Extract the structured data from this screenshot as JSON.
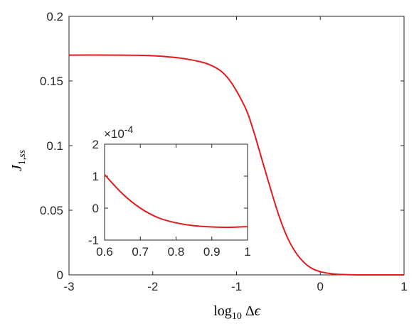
{
  "chart_data": [
    {
      "type": "line",
      "role": "main",
      "xlabel": "log10 Δε",
      "ylabel": "J1,ss",
      "xlim": [
        -3,
        1
      ],
      "ylim": [
        0,
        0.2
      ],
      "xticks": [
        "-3",
        "-2",
        "-1",
        "0",
        "1"
      ],
      "yticks": [
        "0",
        "0.05",
        "0.1",
        "0.15",
        "0.2"
      ],
      "grid": false,
      "series": [
        {
          "color": "#e41a1c",
          "x": [
            -3.0,
            -2.5,
            -2.0,
            -1.6,
            -1.3,
            -1.1,
            -0.9,
            -0.8,
            -0.7,
            -0.6,
            -0.5,
            -0.4,
            -0.3,
            -0.2,
            -0.1,
            0.0,
            0.1,
            0.2,
            0.4,
            0.6,
            0.8,
            1.0
          ],
          "y": [
            0.17,
            0.17,
            0.1695,
            0.167,
            0.162,
            0.152,
            0.13,
            0.112,
            0.09,
            0.068,
            0.047,
            0.03,
            0.018,
            0.01,
            0.005,
            0.0025,
            0.0012,
            0.0005,
            0.0001,
            0.0,
            0.0,
            0.0
          ]
        }
      ]
    },
    {
      "type": "line",
      "role": "inset",
      "xlim": [
        0.6,
        1
      ],
      "ylim": [
        -1,
        2
      ],
      "exponent_label": "×10",
      "exponent_power": "-4",
      "xticks": [
        "0.6",
        "0.7",
        "0.8",
        "0.9",
        "1"
      ],
      "yticks": [
        "-1",
        "0",
        "1",
        "2"
      ],
      "grid": false,
      "series": [
        {
          "color": "#e41a1c",
          "x": [
            0.6,
            0.65,
            0.7,
            0.75,
            0.8,
            0.85,
            0.9,
            0.95,
            1.0
          ],
          "y": [
            1.05,
            0.45,
            0.0,
            -0.3,
            -0.46,
            -0.55,
            -0.59,
            -0.6,
            -0.58
          ]
        }
      ]
    }
  ]
}
